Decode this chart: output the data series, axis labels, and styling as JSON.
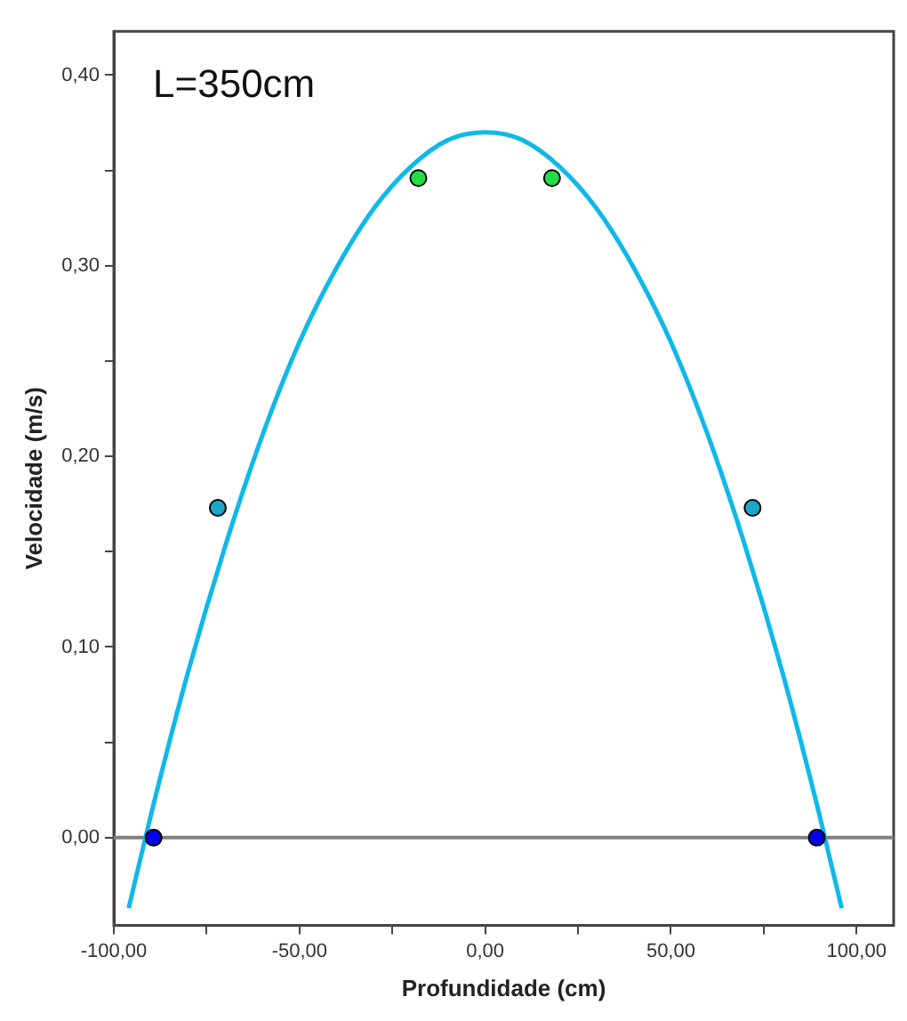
{
  "chart_data": {
    "type": "scatter",
    "xlabel": "Profundidade (cm)",
    "ylabel": "Velocidade (m/s)",
    "annotations": [
      "L=350cm"
    ],
    "xlim": [
      -100,
      110
    ],
    "ylim": [
      -0.046,
      0.423
    ],
    "xticks": [
      {
        "value": -100,
        "label": "-100,00"
      },
      {
        "value": -75,
        "label": null
      },
      {
        "value": -50,
        "label": "-50,00"
      },
      {
        "value": -25,
        "label": null
      },
      {
        "value": 0,
        "label": "0,00"
      },
      {
        "value": 25,
        "label": null
      },
      {
        "value": 50,
        "label": "50,00"
      },
      {
        "value": 75,
        "label": null
      },
      {
        "value": 100,
        "label": "100,00"
      }
    ],
    "yticks": [
      {
        "value": 0,
        "label": "0,00"
      },
      {
        "value": 0.05,
        "label": null
      },
      {
        "value": 0.1,
        "label": "0,10"
      },
      {
        "value": 0.15,
        "label": null
      },
      {
        "value": 0.2,
        "label": "0,20"
      },
      {
        "value": 0.25,
        "label": null
      },
      {
        "value": 0.3,
        "label": "0,30"
      },
      {
        "value": 0.35,
        "label": null
      },
      {
        "value": 0.4,
        "label": "0,40"
      }
    ],
    "grid": false,
    "legend": false,
    "marker": "circle",
    "ref_lines": [
      {
        "axis": "y",
        "value": 0,
        "color": "#808080"
      }
    ],
    "series": [
      {
        "type": "line",
        "marker": "none",
        "color": "#10b8e8",
        "x": [
          -96,
          -90,
          -80,
          -70,
          -60,
          -50,
          -40,
          -30,
          -20,
          -10,
          0,
          10,
          20,
          30,
          40,
          50,
          60,
          70,
          80,
          90,
          96
        ],
        "values": [
          -0.037,
          0.012,
          0.087,
          0.153,
          0.211,
          0.26,
          0.299,
          0.33,
          0.352,
          0.366,
          0.37,
          0.366,
          0.352,
          0.33,
          0.299,
          0.26,
          0.211,
          0.153,
          0.087,
          0.012,
          -0.037
        ]
      },
      {
        "colors": [
          "#0000ee",
          "#1aa7c8",
          "#22dd44",
          "#22dd44",
          "#1aa7c8",
          "#0000ee"
        ],
        "x": [
          -89.3,
          -72,
          -18,
          18,
          72,
          89.3
        ],
        "values": [
          0,
          0.173,
          0.346,
          0.346,
          0.173,
          0
        ]
      }
    ]
  }
}
